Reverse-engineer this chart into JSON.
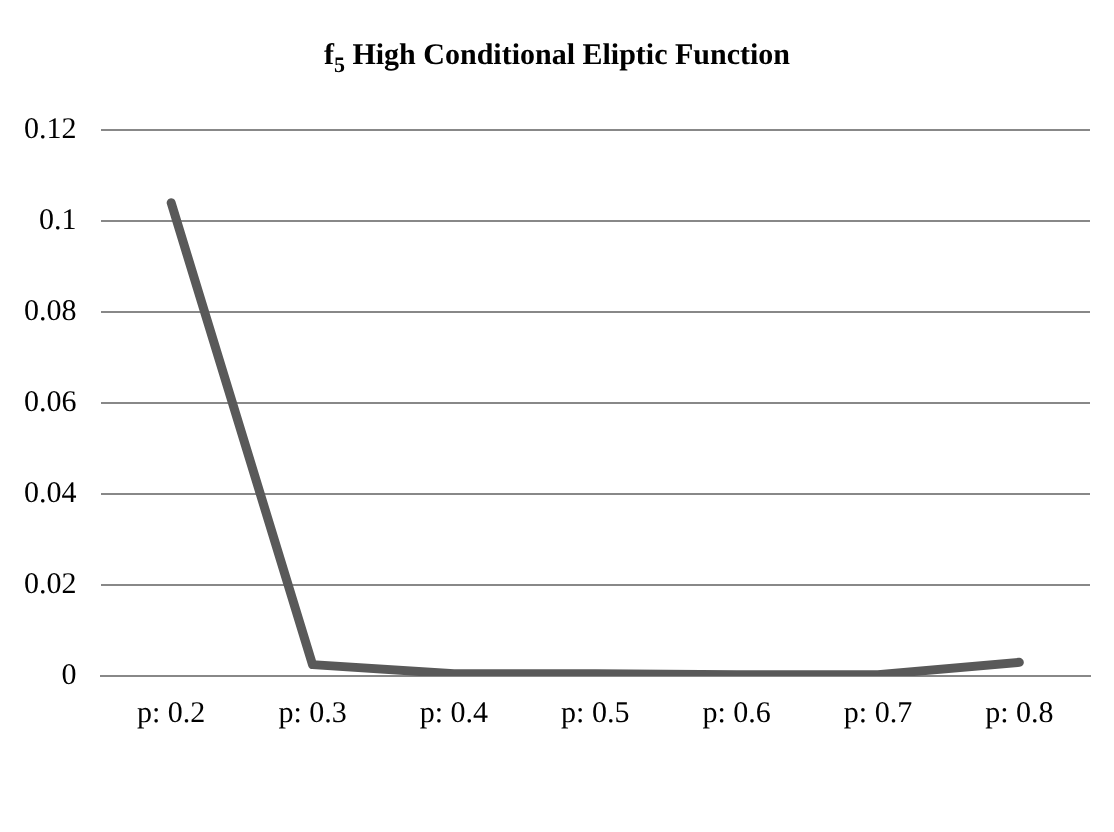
{
  "chart_data": {
    "type": "line",
    "title": "f$_{5}$ High Conditional Eliptic Function",
    "categories": [
      "p: 0.2",
      "p: 0.3",
      "p: 0.4",
      "p: 0.5",
      "p: 0.6",
      "p: 0.7",
      "p: 0.8"
    ],
    "series": [
      {
        "color": "#595959",
        "values": [
          0.104,
          0.0025,
          0.0005,
          0.0005,
          0.0003,
          0.0003,
          0.003
        ]
      }
    ],
    "ylim": [
      0,
      0.12
    ],
    "yticks": [
      0,
      0.02,
      0.04,
      0.06,
      0.08,
      0.1,
      0.12
    ],
    "grid": "y",
    "legend": false,
    "marker": "none",
    "line_style": "solid"
  }
}
